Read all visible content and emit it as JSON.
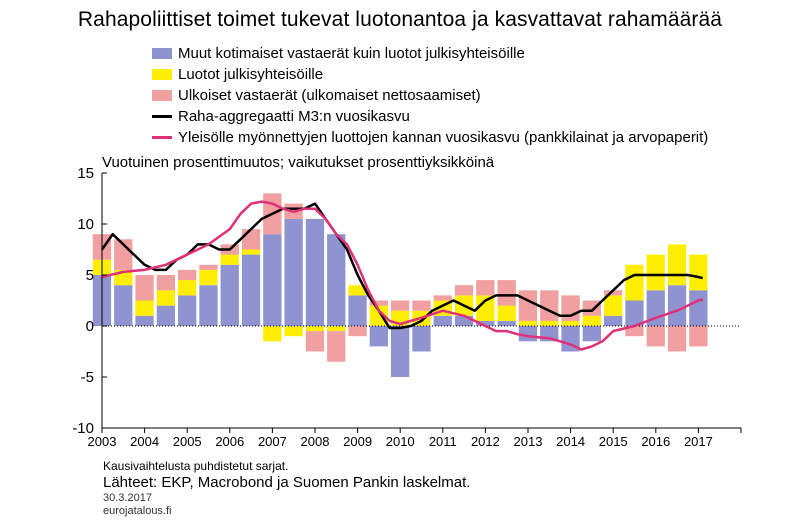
{
  "chart_data": {
    "type": "bar",
    "title": "Rahapoliittiset toimet tukevat luotonantoa ja kasvattavat rahamäärää",
    "ylabel": "Vuotuinen prosenttimuutos; vaikutukset prosenttiyksikköinä",
    "ylim": [
      -10,
      15
    ],
    "yticks": [
      15,
      10,
      5,
      0,
      -5,
      -10
    ],
    "xlim": [
      2003,
      2018
    ],
    "xticks": [
      "2003",
      "2004",
      "2005",
      "2006",
      "2007",
      "2008",
      "2009",
      "2010",
      "2011",
      "2012",
      "2013",
      "2014",
      "2015",
      "2016",
      "2017"
    ],
    "grid": false,
    "legend_position": "top-left",
    "stacked": true,
    "series": [
      {
        "name": "Muut kotimaiset vastaerät kuin luotot julkisyhteisöille",
        "kind": "bar",
        "color": "#8f93d0",
        "x": [
          2003.0,
          2003.5,
          2004.0,
          2004.5,
          2005.0,
          2005.5,
          2006.0,
          2006.5,
          2007.0,
          2007.5,
          2008.0,
          2008.5,
          2009.0,
          2009.5,
          2010.0,
          2010.5,
          2011.0,
          2011.5,
          2012.0,
          2012.5,
          2013.0,
          2013.5,
          2014.0,
          2014.5,
          2015.0,
          2015.5,
          2016.0,
          2016.5,
          2017.0
        ],
        "values": [
          5.0,
          4.0,
          1.0,
          2.0,
          3.0,
          4.0,
          6.0,
          7.0,
          9.0,
          10.5,
          10.5,
          9.0,
          3.0,
          -2.0,
          -5.0,
          -2.5,
          1.0,
          1.0,
          0.5,
          0.5,
          -1.5,
          -1.5,
          -2.5,
          -1.5,
          1.0,
          2.5,
          3.5,
          4.0,
          3.5
        ]
      },
      {
        "name": "Luotot julkisyhteisöille",
        "kind": "bar",
        "color": "#ffee00",
        "x": [
          2003.0,
          2003.5,
          2004.0,
          2004.5,
          2005.0,
          2005.5,
          2006.0,
          2006.5,
          2007.0,
          2007.5,
          2008.0,
          2008.5,
          2009.0,
          2009.5,
          2010.0,
          2010.5,
          2011.0,
          2011.5,
          2012.0,
          2012.5,
          2013.0,
          2013.5,
          2014.0,
          2014.5,
          2015.0,
          2015.5,
          2016.0,
          2016.5,
          2017.0
        ],
        "values": [
          1.5,
          1.5,
          1.5,
          1.5,
          1.5,
          1.5,
          1.0,
          0.5,
          -1.5,
          -1.0,
          -0.5,
          -0.5,
          1.0,
          2.0,
          1.5,
          1.5,
          1.5,
          2.0,
          2.5,
          1.5,
          0.5,
          0.5,
          0.5,
          1.0,
          2.0,
          3.5,
          3.5,
          4.0,
          3.5
        ]
      },
      {
        "name": "Ulkoiset vastaerät (ulkomaiset nettosaamiset)",
        "kind": "bar",
        "color": "#f0a0a0",
        "x": [
          2003.0,
          2003.5,
          2004.0,
          2004.5,
          2005.0,
          2005.5,
          2006.0,
          2006.5,
          2007.0,
          2007.5,
          2008.0,
          2008.5,
          2009.0,
          2009.5,
          2010.0,
          2010.5,
          2011.0,
          2011.5,
          2012.0,
          2012.5,
          2013.0,
          2013.5,
          2014.0,
          2014.5,
          2015.0,
          2015.5,
          2016.0,
          2016.5,
          2017.0
        ],
        "values": [
          2.5,
          3.0,
          2.5,
          1.5,
          1.0,
          0.5,
          1.0,
          2.0,
          4.0,
          1.5,
          -2.0,
          -3.0,
          -1.0,
          0.5,
          1.0,
          1.0,
          0.5,
          1.0,
          1.5,
          2.5,
          3.0,
          3.0,
          2.5,
          1.5,
          0.5,
          -1.0,
          -2.0,
          -2.5,
          -2.0
        ]
      },
      {
        "name": "Raha-aggregaatti M3:n vuosikasvu",
        "kind": "line",
        "color": "#000000",
        "x": [
          2003.0,
          2003.25,
          2003.5,
          2003.75,
          2004.0,
          2004.25,
          2004.5,
          2004.75,
          2005.0,
          2005.25,
          2005.5,
          2005.75,
          2006.0,
          2006.25,
          2006.5,
          2006.75,
          2007.0,
          2007.25,
          2007.5,
          2007.75,
          2008.0,
          2008.25,
          2008.5,
          2008.75,
          2009.0,
          2009.25,
          2009.5,
          2009.75,
          2010.0,
          2010.25,
          2010.5,
          2010.75,
          2011.0,
          2011.25,
          2011.5,
          2011.75,
          2012.0,
          2012.25,
          2012.5,
          2012.75,
          2013.0,
          2013.25,
          2013.5,
          2013.75,
          2014.0,
          2014.25,
          2014.5,
          2014.75,
          2015.0,
          2015.25,
          2015.5,
          2015.75,
          2016.0,
          2016.25,
          2016.5,
          2016.75,
          2017.0,
          2017.1
        ],
        "values": [
          7.5,
          9.0,
          8.0,
          7.0,
          6.0,
          5.5,
          5.5,
          6.5,
          7.0,
          8.0,
          8.0,
          7.5,
          7.5,
          8.5,
          9.5,
          10.5,
          11.0,
          11.5,
          11.5,
          11.5,
          12.0,
          10.5,
          9.0,
          7.5,
          5.0,
          3.0,
          1.5,
          -0.2,
          -0.2,
          0.0,
          0.5,
          1.5,
          2.0,
          2.5,
          2.0,
          1.5,
          2.5,
          3.0,
          3.0,
          3.0,
          2.5,
          2.0,
          1.5,
          1.0,
          1.0,
          1.5,
          1.5,
          2.5,
          3.5,
          4.5,
          5.0,
          5.0,
          5.0,
          5.0,
          5.0,
          5.0,
          4.8,
          4.7
        ]
      },
      {
        "name": "Yleisölle myönnettyjen luottojen kannan vuosikasvu (pankkilainat ja arvopaperit)",
        "kind": "line",
        "color": "#e0307a",
        "x": [
          2003.0,
          2003.5,
          2004.0,
          2004.5,
          2005.0,
          2005.5,
          2006.0,
          2006.25,
          2006.5,
          2006.75,
          2007.0,
          2007.25,
          2007.5,
          2007.75,
          2008.0,
          2008.25,
          2008.5,
          2008.75,
          2009.0,
          2009.25,
          2009.5,
          2009.75,
          2010.0,
          2010.5,
          2011.0,
          2011.5,
          2012.0,
          2012.25,
          2012.5,
          2012.75,
          2013.0,
          2013.5,
          2014.0,
          2014.25,
          2014.5,
          2014.75,
          2015.0,
          2015.5,
          2016.0,
          2016.5,
          2017.0,
          2017.1
        ],
        "values": [
          4.8,
          5.3,
          5.5,
          6.0,
          7.0,
          8.0,
          9.5,
          11.0,
          12.0,
          12.2,
          12.0,
          11.5,
          11.2,
          11.5,
          11.5,
          10.5,
          9.0,
          8.0,
          6.0,
          3.5,
          1.5,
          0.5,
          0.2,
          0.8,
          1.5,
          1.0,
          0.0,
          -0.5,
          -0.5,
          -0.8,
          -1.0,
          -1.2,
          -1.8,
          -2.3,
          -2.0,
          -1.5,
          -0.5,
          0.0,
          0.8,
          1.5,
          2.5,
          2.6
        ]
      }
    ]
  },
  "footer": {
    "note": "Kausivaihtelusta puhdistetut sarjat.",
    "sources": "Lähteet: EKP, Macrobond ja Suomen Pankin laskelmat.",
    "date": "30.3.2017",
    "site": "eurojatalous.fi"
  }
}
